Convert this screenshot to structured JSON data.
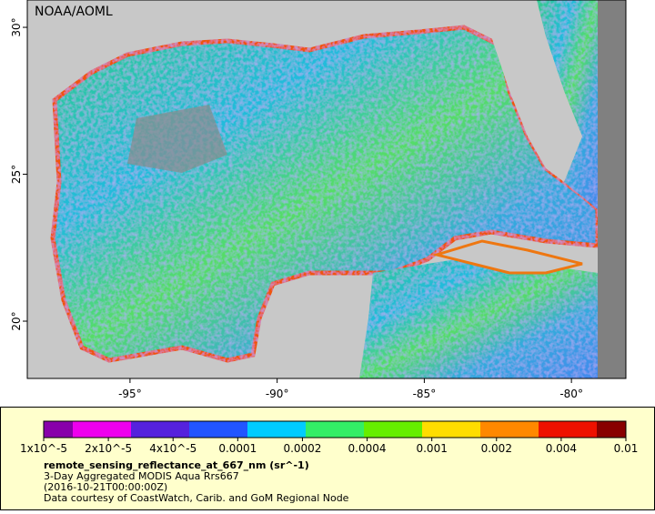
{
  "map": {
    "credit": "NOAA/AOML",
    "lonlim": [
      -98.49,
      -78.15
    ],
    "latlim": [
      18.05,
      30.93
    ],
    "lon_ticks": [
      {
        "value": -95,
        "label": "-95°"
      },
      {
        "value": -90,
        "label": "-90°"
      },
      {
        "value": -85,
        "label": "-85°"
      },
      {
        "value": -80,
        "label": "-80°"
      }
    ],
    "lat_ticks": [
      {
        "value": 20,
        "label": "20°"
      },
      {
        "value": 25,
        "label": "25°"
      },
      {
        "value": 30,
        "label": "30°"
      }
    ]
  },
  "colorbar": {
    "labels": [
      "1x10^-5",
      "2x10^-5",
      "4x10^-5",
      "0.0001",
      "0.0002",
      "0.0004",
      "0.001",
      "0.002",
      "0.004",
      "0.01"
    ]
  },
  "legend": {
    "variable": "remote_sensing_reflectance_at_667_nm (sr^-1)",
    "lines": [
      "3-Day Aggregated MODIS Aqua Rrs667",
      "(2016-10-21T00:00:00Z)",
      "Data courtesy of CoastWatch, Carib. and GoM Regional Node"
    ]
  }
}
